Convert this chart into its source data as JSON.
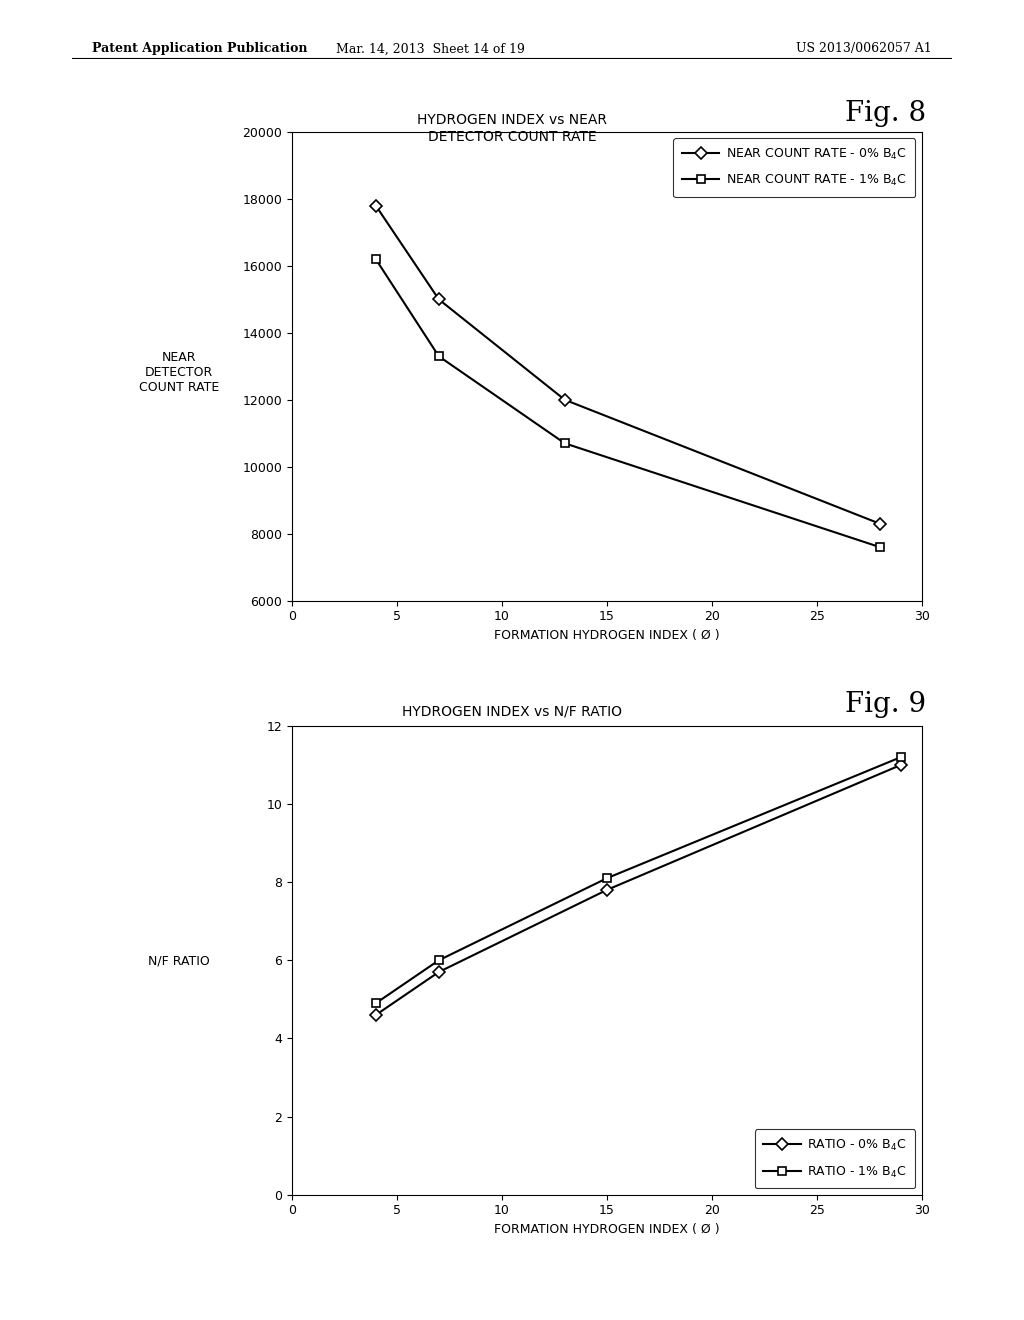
{
  "fig8": {
    "title_line1": "HYDROGEN INDEX vs NEAR",
    "title_line2": "DETECTOR COUNT RATE",
    "fig_label": "Fig. 8",
    "xlabel": "FORMATION HYDROGEN INDEX ( Ø )",
    "ylabel": "NEAR\nDETECTOR\nCOUNT RATE",
    "xlim": [
      0,
      30
    ],
    "ylim": [
      6000,
      20000
    ],
    "xticks": [
      0,
      5,
      10,
      15,
      20,
      25,
      30
    ],
    "yticks": [
      6000,
      8000,
      10000,
      12000,
      14000,
      16000,
      18000,
      20000
    ],
    "series1": {
      "x": [
        4,
        7,
        13,
        28
      ],
      "y": [
        17800,
        15000,
        12000,
        8300
      ],
      "label": "NEAR COUNT RATE - 0% B$_4$C",
      "marker": "D",
      "color": "#000000"
    },
    "series2": {
      "x": [
        4,
        7,
        13,
        28
      ],
      "y": [
        16200,
        13300,
        10700,
        7600
      ],
      "label": "NEAR COUNT RATE - 1% B$_4$C",
      "marker": "s",
      "color": "#000000"
    }
  },
  "fig9": {
    "title": "HYDROGEN INDEX vs N/F RATIO",
    "fig_label": "Fig. 9",
    "xlabel": "FORMATION HYDROGEN INDEX ( Ø )",
    "ylabel": "N/F RATIO",
    "xlim": [
      0,
      30
    ],
    "ylim": [
      0,
      12
    ],
    "xticks": [
      0,
      5,
      10,
      15,
      20,
      25,
      30
    ],
    "yticks": [
      0,
      2,
      4,
      6,
      8,
      10,
      12
    ],
    "series1": {
      "x": [
        4,
        7,
        15,
        29
      ],
      "y": [
        4.6,
        5.7,
        7.8,
        11.0
      ],
      "label": "RATIO - 0% B$_4$C",
      "marker": "D",
      "color": "#000000"
    },
    "series2": {
      "x": [
        4,
        7,
        15,
        29
      ],
      "y": [
        4.9,
        6.0,
        8.1,
        11.2
      ],
      "label": "RATIO - 1% B$_4$C",
      "marker": "s",
      "color": "#000000"
    }
  },
  "header_left": "Patent Application Publication",
  "header_mid": "Mar. 14, 2013  Sheet 14 of 19",
  "header_right": "US 2013/0062057 A1",
  "background_color": "#ffffff",
  "title_font_size": 10,
  "fig_label_font_size": 20,
  "axis_label_font_size": 9,
  "tick_font_size": 9,
  "legend_font_size": 9,
  "header_font_size": 9
}
